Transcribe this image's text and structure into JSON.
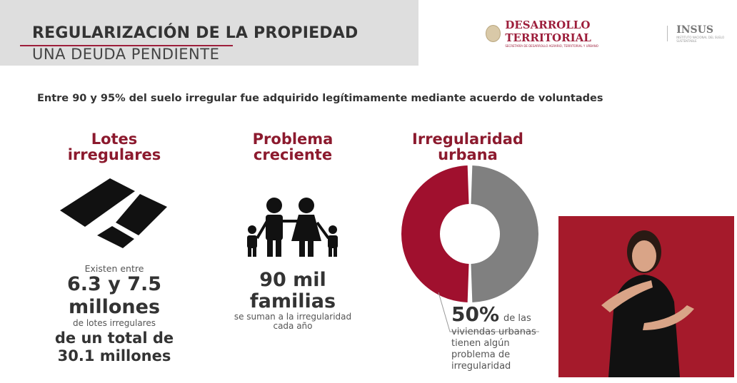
{
  "header": {
    "title": "REGULARIZACIÓN DE LA PROPIEDAD",
    "subtitle": "UNA DEUDA PENDIENTE"
  },
  "logo": {
    "brand": "DESARROLLO TERRITORIAL",
    "brand_sub": "SECRETARÍA DE DESARROLLO AGRARIO, TERRITORIAL Y URBANO",
    "insus": "INSUS",
    "insus_sub": "INSTITUTO NACIONAL DEL SUELO SUSTENTABLE"
  },
  "lead": "Entre 90 y 95% del suelo irregular fue adquirido legítimamente mediante acuerdo de voluntades",
  "col1": {
    "title1": "Lotes",
    "title2": "irregulares",
    "pre": "Existen entre",
    "big1": "6.3 y 7.5",
    "big2": "millones",
    "mid": "de lotes irregulares",
    "big3": "de un total de",
    "big4": "30.1 millones",
    "icon": "land-plots-icon"
  },
  "col2": {
    "title1": "Problema",
    "title2": "creciente",
    "big1": "90 mil",
    "big2": "familias",
    "note1": "se suman a la  irregularidad",
    "note2": "cada año",
    "icon": "family-icon"
  },
  "col3": {
    "title1": "Irregularidad",
    "title2": "urbana",
    "pct": "50%",
    "t1": "de  las",
    "t2": "viviendas urbanas",
    "t3": "tienen algún",
    "t4": "problema de",
    "t5": "irregularidad"
  },
  "chart_data": {
    "type": "pie",
    "values": [
      50,
      50
    ],
    "colors": [
      "#a0102e",
      "#808080"
    ]
  },
  "colors": {
    "accent": "#9d1e3b",
    "video_bg": "#a51a2b"
  }
}
